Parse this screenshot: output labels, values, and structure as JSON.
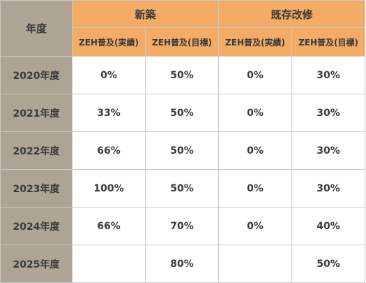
{
  "table": {
    "year_header": "年度",
    "groups": [
      "新築",
      "既存改修"
    ],
    "subheaders": [
      "ZEH普及(実績)",
      "ZEH普及(目標)",
      "ZEH普及(実績)",
      "ZEH普及(目標)"
    ],
    "rows": [
      {
        "year": "2020年度",
        "cells": [
          "0%",
          "50%",
          "0%",
          "30%"
        ]
      },
      {
        "year": "2021年度",
        "cells": [
          "33%",
          "50%",
          "0%",
          "30%"
        ]
      },
      {
        "year": "2022年度",
        "cells": [
          "66%",
          "50%",
          "0%",
          "30%"
        ]
      },
      {
        "year": "2023年度",
        "cells": [
          "100%",
          "50%",
          "0%",
          "30%"
        ]
      },
      {
        "year": "2024年度",
        "cells": [
          "66%",
          "70%",
          "0%",
          "40%"
        ]
      },
      {
        "year": "2025年度",
        "cells": [
          "",
          "80%",
          "",
          "50%"
        ]
      }
    ]
  },
  "colors": {
    "header_orange": "#f3ab66",
    "year_column": "#aea495",
    "grid": "#c9c9c9"
  }
}
